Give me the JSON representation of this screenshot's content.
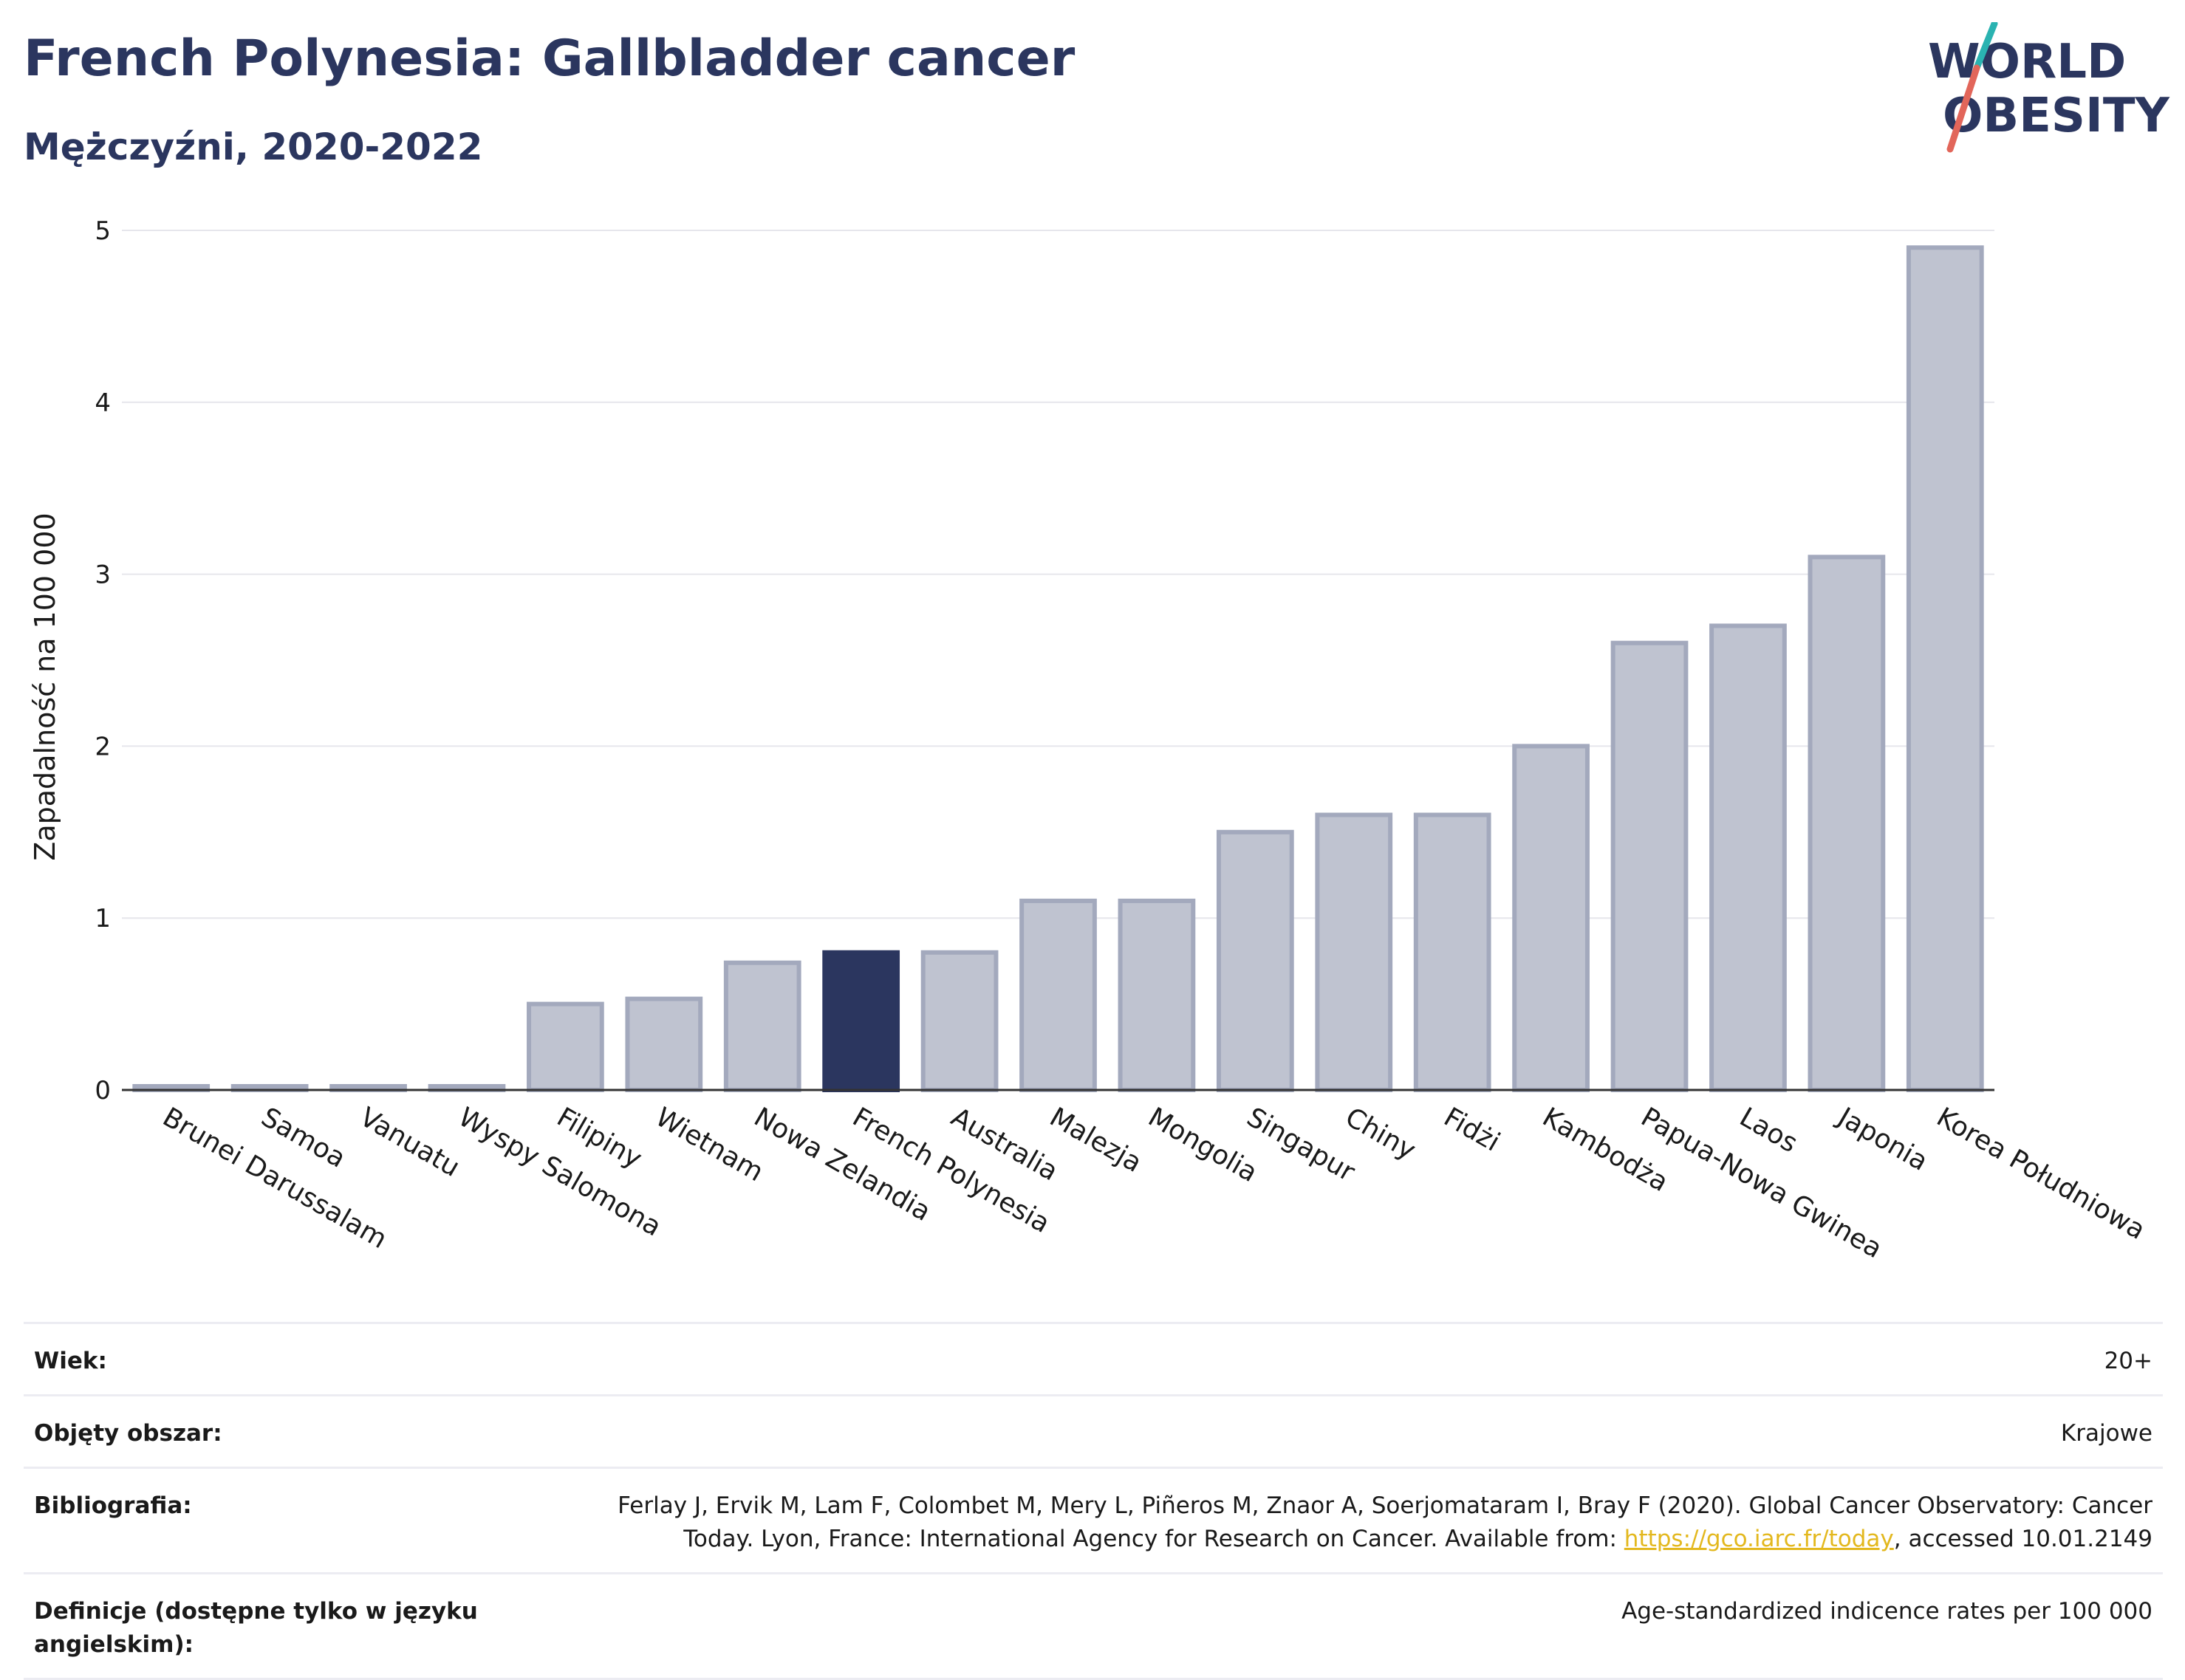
{
  "title": "French Polynesia: Gallbladder cancer",
  "subtitle": "Mężczyźni, 2020-2022",
  "logo": {
    "line1": "WORLD",
    "line2": "OBESITY",
    "accent_colors": [
      "#2ab3b1",
      "#e2665a"
    ]
  },
  "colors": {
    "highlight": "#2b365f",
    "bar": "#bfc3d0",
    "bar_border": "#a3a9bd",
    "axis": "#333333",
    "grid": "#e6e6ec"
  },
  "chart_data": {
    "type": "bar",
    "title": "French Polynesia: Gallbladder cancer",
    "subtitle": "Mężczyźni, 2020-2022",
    "xlabel": "",
    "ylabel": "Zapadalność na 100 000",
    "ylim": [
      0,
      5
    ],
    "yticks": [
      0,
      1,
      2,
      3,
      4,
      5
    ],
    "grid": true,
    "highlight": "French Polynesia",
    "categories": [
      "Brunei Darussalam",
      "Samoa",
      "Vanuatu",
      "Wyspy Salomona",
      "Filipiny",
      "Wietnam",
      "Nowa Zelandia",
      "French Polynesia",
      "Australia",
      "Malezja",
      "Mongolia",
      "Singapur",
      "Chiny",
      "Fidżi",
      "Kambodża",
      "Papua-Nowa Gwinea",
      "Laos",
      "Japonia",
      "Korea Południowa"
    ],
    "values": [
      0,
      0,
      0,
      0,
      0.5,
      0.53,
      0.74,
      0.8,
      0.8,
      1.1,
      1.1,
      1.5,
      1.6,
      1.6,
      2.0,
      2.6,
      2.7,
      3.1,
      4.9
    ]
  },
  "info": {
    "age_label": "Wiek:",
    "age_value": "20+",
    "area_label": "Objęty obszar:",
    "area_value": "Krajowe",
    "bib_label": "Bibliografia:",
    "bib_text_1": "Ferlay J, Ervik M, Lam F, Colombet M, Mery L, Piñeros M, Znaor A, Soerjomataram I, Bray F (2020). Global Cancer Observatory: Cancer",
    "bib_text_2": "Today. Lyon, France: International Agency for Research on Cancer. Available from: ",
    "bib_link": "https://gco.iarc.fr/today",
    "bib_text_3": ", accessed 10.01.2149",
    "def_label": "Definicje (dostępne tylko w języku angielskim):",
    "def_value": "Age-standardized indicence rates per 100 000"
  }
}
